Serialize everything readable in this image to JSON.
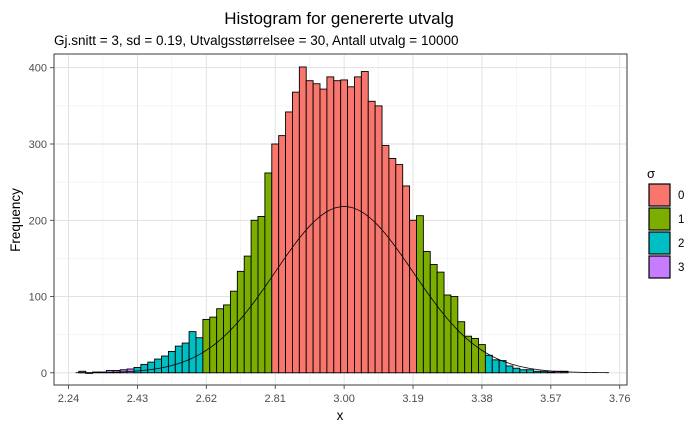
{
  "chart_data": {
    "type": "bar",
    "title": "Histogram for genererte utvalg",
    "subtitle": "Gj.snitt = 3, sd = 0.19, Utvalgsstørrelsee = 30, Antall utvalg = 10000",
    "xlabel": "x",
    "ylabel": "Frequency",
    "xlim": [
      2.2,
      3.78
    ],
    "ylim": [
      -16,
      418
    ],
    "x_ticks": [
      2.24,
      2.43,
      2.62,
      2.81,
      3.0,
      3.19,
      3.38,
      3.57,
      3.76
    ],
    "x_tick_labels": [
      "2.24",
      "2.43",
      "2.62",
      "2.81",
      "3.00",
      "3.19",
      "3.38",
      "3.57",
      "3.76"
    ],
    "y_ticks": [
      0,
      100,
      200,
      300,
      400
    ],
    "y_tick_labels": [
      "0",
      "100",
      "200",
      "300",
      "400"
    ],
    "grid": true,
    "bin_width": 0.019,
    "bins_start": 2.2685,
    "counts": [
      2,
      0,
      1,
      1,
      3,
      3,
      4,
      5,
      7,
      11,
      14,
      18,
      22,
      28,
      35,
      39,
      54,
      46,
      70,
      73,
      84,
      89,
      107,
      133,
      153,
      200,
      205,
      262,
      300,
      311,
      342,
      368,
      401,
      383,
      379,
      372,
      388,
      383,
      384,
      375,
      388,
      395,
      356,
      350,
      298,
      281,
      273,
      245,
      200,
      206,
      159,
      142,
      132,
      102,
      100,
      67,
      48,
      45,
      37,
      23,
      17,
      16,
      9,
      6,
      4,
      4,
      2,
      2,
      1,
      2,
      2
    ],
    "curve": {
      "mean": 3.0,
      "sd": 0.19,
      "scale": 218
    },
    "legend": {
      "title": "σ",
      "placement": "right",
      "items": [
        {
          "label": "0",
          "color": "#F8766D"
        },
        {
          "label": "1",
          "color": "#7CAE00"
        },
        {
          "label": "2",
          "color": "#00BFC4"
        },
        {
          "label": "3",
          "color": "#C77CFF"
        }
      ]
    }
  }
}
